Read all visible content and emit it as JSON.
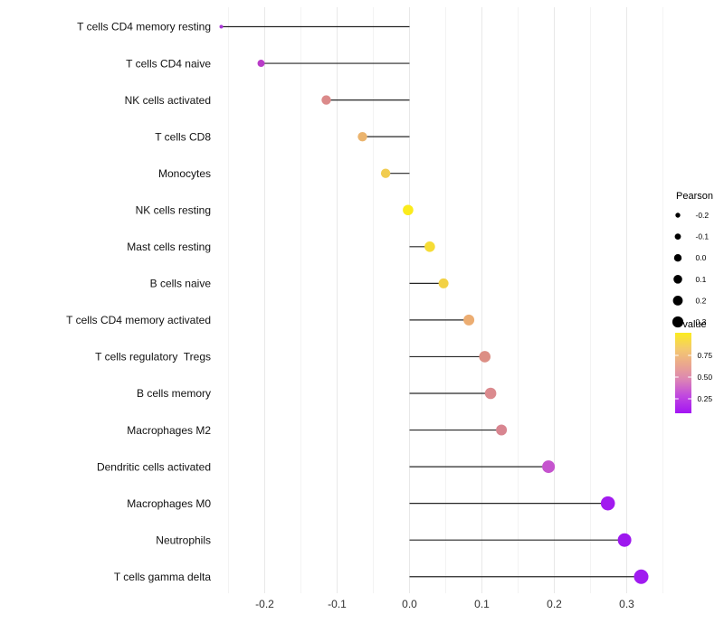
{
  "chart_data": {
    "type": "scatter",
    "variant": "horizontal-lollipop",
    "title": "",
    "xlabel": "",
    "ylabel": "",
    "xlim": [
      -0.265,
      0.355
    ],
    "x_ticks": [
      -0.2,
      -0.1,
      0.0,
      0.1,
      0.2,
      0.3
    ],
    "x_tick_labels": [
      "-0.2",
      "-0.1",
      "0.0",
      "0.1",
      "0.2",
      "0.3"
    ],
    "x_minor_ticks": [
      -0.25,
      -0.15,
      -0.05,
      0.05,
      0.15,
      0.25,
      0.35
    ],
    "grid": "vertical-only",
    "legend_position": "right",
    "points": [
      {
        "label": "T cells CD4 memory resting",
        "pearson": -0.26,
        "color": "#A937D6",
        "radius": 2.0
      },
      {
        "label": "T cells CD4 naive",
        "pearson": -0.205,
        "color": "#B93CC8",
        "radius": 4.0
      },
      {
        "label": "NK cells activated",
        "pearson": -0.115,
        "color": "#DB8A8A",
        "radius": 5.2
      },
      {
        "label": "T cells CD8",
        "pearson": -0.065,
        "color": "#EBB46E",
        "radius": 5.2
      },
      {
        "label": "Monocytes",
        "pearson": -0.033,
        "color": "#F1CC4F",
        "radius": 5.2
      },
      {
        "label": "NK cells resting",
        "pearson": -0.002,
        "color": "#FBEB1C",
        "radius": 5.8
      },
      {
        "label": "Mast cells resting",
        "pearson": 0.028,
        "color": "#F6DC35",
        "radius": 5.8
      },
      {
        "label": "B cells naive",
        "pearson": 0.047,
        "color": "#F2D145",
        "radius": 5.5
      },
      {
        "label": "T cells CD4 memory activated",
        "pearson": 0.082,
        "color": "#ECAD72",
        "radius": 6.0
      },
      {
        "label": "T cells regulatory  Tregs",
        "pearson": 0.104,
        "color": "#DC8E84",
        "radius": 6.3
      },
      {
        "label": "B cells memory",
        "pearson": 0.112,
        "color": "#DB8A8E",
        "radius": 6.3
      },
      {
        "label": "Macrophages M2",
        "pearson": 0.127,
        "color": "#D88590",
        "radius": 6.0
      },
      {
        "label": "Dendritic cells activated",
        "pearson": 0.192,
        "color": "#C554CE",
        "radius": 7.0
      },
      {
        "label": "Macrophages M0",
        "pearson": 0.274,
        "color": "#A21BEF",
        "radius": 7.8
      },
      {
        "label": "Neutrophils",
        "pearson": 0.297,
        "color": "#9D17EE",
        "radius": 7.5
      },
      {
        "label": "T cells gamma delta",
        "pearson": 0.32,
        "color": "#A01BF0",
        "radius": 8.0
      }
    ],
    "legend_size": {
      "title": "Pearson",
      "dot_color": "#000000",
      "entries": [
        {
          "label": "-0.2",
          "radius": 2.7
        },
        {
          "label": "-0.1",
          "radius": 3.4
        },
        {
          "label": "0.0",
          "radius": 4.2
        },
        {
          "label": "0.1",
          "radius": 4.8
        },
        {
          "label": "0.2",
          "radius": 5.4
        },
        {
          "label": "0.3",
          "radius": 6.1
        }
      ]
    },
    "legend_color": {
      "title": "Pvalue",
      "tick_labels": [
        "0.75",
        "0.50",
        "0.25"
      ],
      "gradient_stops": [
        {
          "offset": 0.0,
          "color": "#FBEC1F"
        },
        {
          "offset": 0.2,
          "color": "#F4C96E"
        },
        {
          "offset": 0.4,
          "color": "#EAA68F"
        },
        {
          "offset": 0.58,
          "color": "#DC85B4"
        },
        {
          "offset": 0.78,
          "color": "#C149DF"
        },
        {
          "offset": 1.0,
          "color": "#A315F3"
        }
      ]
    },
    "colors": {
      "background": "#FFFFFF",
      "stem": "#262626",
      "grid_major": "#E8E8E8",
      "grid_minor": "#F3F3F3",
      "axis_text": "#303030",
      "label_text": "#111111",
      "legend_text": "#000000"
    }
  }
}
